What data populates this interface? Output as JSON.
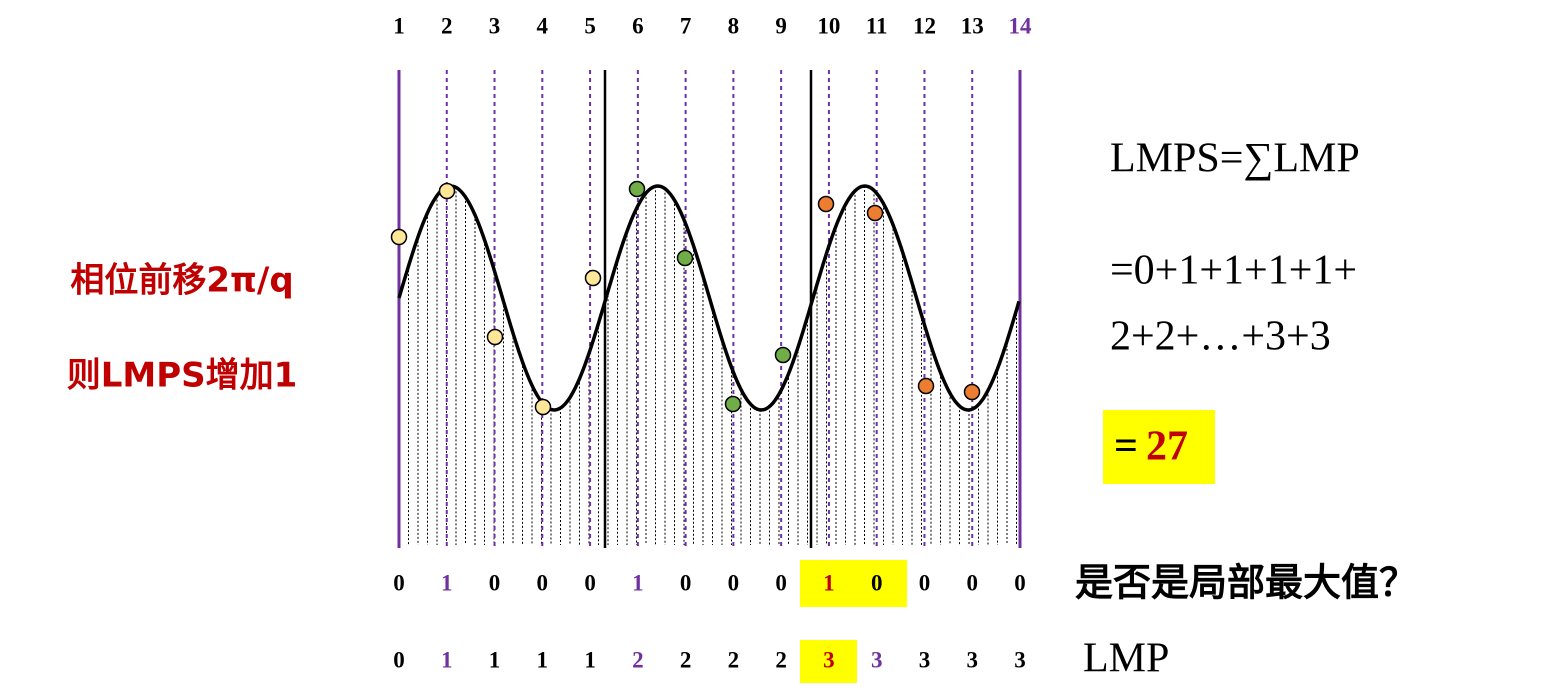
{
  "left_note": [
    "相位前移2π/q",
    "则LMPS增加1"
  ],
  "top_labels": [
    1,
    2,
    3,
    4,
    5,
    6,
    7,
    8,
    9,
    10,
    11,
    12,
    13,
    14
  ],
  "is_local_max": [
    0,
    1,
    0,
    0,
    0,
    1,
    0,
    0,
    0,
    1,
    0,
    0,
    0,
    0
  ],
  "lmp": [
    0,
    1,
    1,
    1,
    1,
    2,
    2,
    2,
    2,
    3,
    3,
    3,
    3,
    3
  ],
  "formula": [
    "LMPS=∑LMP",
    "=0+1+1+1+1+",
    "2+2+…+3+3"
  ],
  "result_sign": "=",
  "result": 27,
  "row_labels": [
    "是否是局部最大值？",
    "LMP"
  ]
}
